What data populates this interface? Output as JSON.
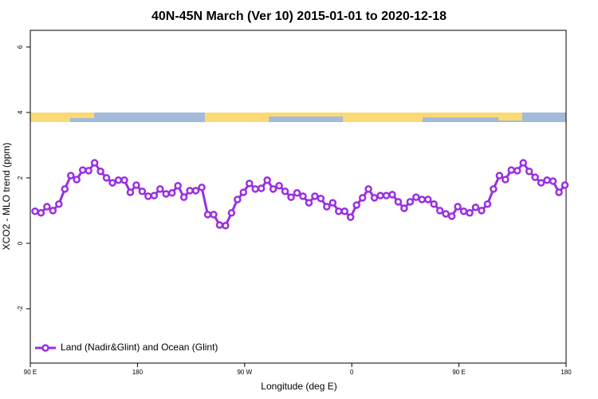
{
  "chart_data": {
    "type": "line",
    "title": "40N-45N March (Ver 10)   2015-01-01 to 2020-12-18",
    "x_label": "Longitude (deg E)",
    "y_label": "XCO2 - MLO trend (ppm)",
    "xlim": [
      90,
      540
    ],
    "xticks": [
      {
        "value": 90,
        "label": "90 E"
      },
      180,
      {
        "value": 270,
        "label": "90 W"
      },
      {
        "value": 360,
        "label": "0"
      },
      {
        "value": 450,
        "label": "90 E"
      },
      {
        "value": 540,
        "label": "180"
      }
    ],
    "ylim": [
      -3.66,
      6.51
    ],
    "yticks": [
      -2,
      0,
      2,
      4,
      6
    ],
    "legend": "bottom-left",
    "x": [
      94,
      99,
      104,
      109,
      114,
      119,
      124,
      129,
      134,
      139,
      144,
      149,
      154,
      159,
      164,
      169,
      174,
      179,
      184,
      189,
      194,
      199,
      204,
      209,
      214,
      219,
      224,
      229,
      234,
      239,
      244,
      249,
      254,
      259,
      264,
      269,
      274,
      279,
      284,
      289,
      294,
      299,
      304,
      309,
      314,
      319,
      324,
      329,
      334,
      339,
      344,
      349,
      354,
      359,
      364,
      369,
      374,
      379,
      384,
      389,
      394,
      399,
      404,
      409,
      414,
      419,
      424,
      429,
      434,
      439,
      444,
      449,
      454,
      459,
      464,
      469,
      474,
      479,
      484,
      489,
      494,
      499,
      504,
      509,
      514,
      519,
      524,
      529,
      534,
      539
    ],
    "series": [
      {
        "name": "Land (Nadir&Glint) and Ocean (Glint)",
        "color": "#9a2fe0",
        "values": [
          0.98,
          0.93,
          1.12,
          1.0,
          1.2,
          1.66,
          2.07,
          1.95,
          2.24,
          2.22,
          2.46,
          2.2,
          2.0,
          1.85,
          1.93,
          1.93,
          1.56,
          1.78,
          1.59,
          1.44,
          1.46,
          1.66,
          1.51,
          1.54,
          1.76,
          1.41,
          1.61,
          1.61,
          1.71,
          0.88,
          0.88,
          0.56,
          0.54,
          0.93,
          1.34,
          1.56,
          1.83,
          1.66,
          1.68,
          1.93,
          1.66,
          1.76,
          1.59,
          1.41,
          1.54,
          1.44,
          1.24,
          1.44,
          1.37,
          1.12,
          1.24,
          0.98,
          0.98,
          0.8,
          1.17,
          1.39,
          1.66,
          1.39,
          1.46,
          1.46,
          1.49,
          1.27,
          1.07,
          1.27,
          1.41,
          1.34,
          1.34,
          1.2,
          1.0,
          0.9,
          0.83,
          1.12,
          0.98,
          0.93,
          1.1,
          1.0,
          1.2,
          1.66,
          2.07,
          1.95,
          2.24,
          2.22,
          2.46,
          2.2,
          2.02,
          1.85,
          1.93,
          1.9,
          1.56,
          1.78
        ]
      }
    ]
  }
}
